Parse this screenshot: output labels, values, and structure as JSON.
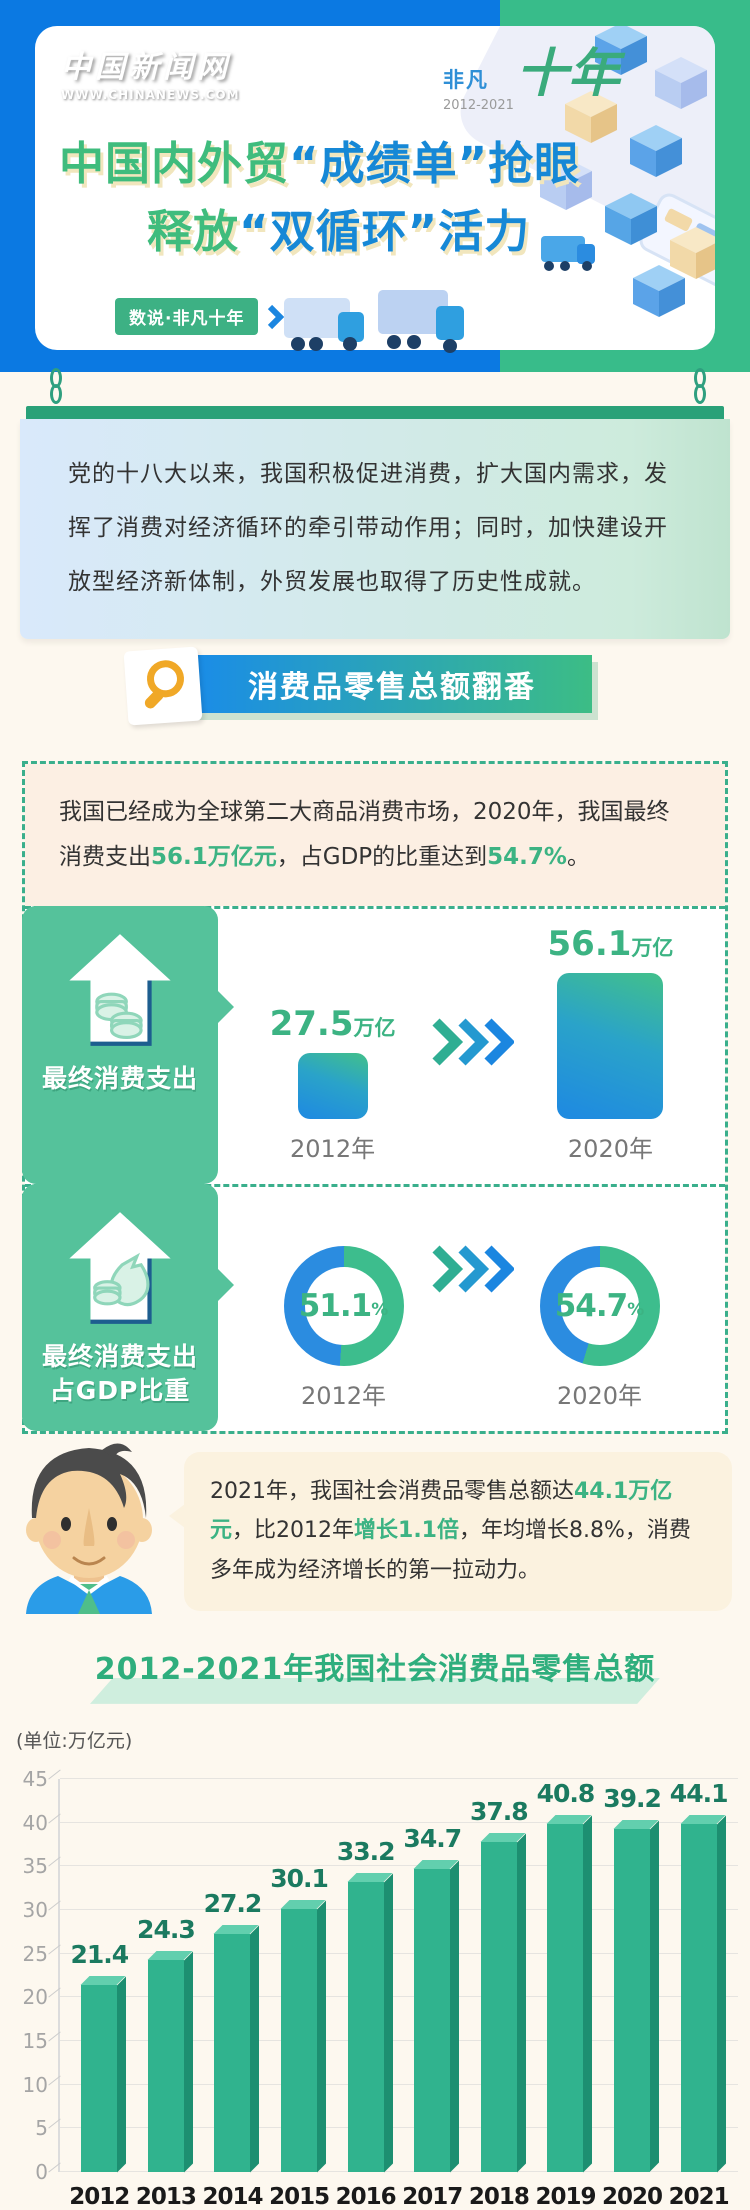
{
  "theme": {
    "header_blue": "#0b79e2",
    "header_green": "#38bc8a",
    "accent_green": "#3cb383",
    "accent_blue": "#1688d6",
    "dashed_border": "#3aaf8c"
  },
  "header": {
    "logo_title": "中国新闻网",
    "logo_url": "WWW.CHINANEWS.COM",
    "decade_label_1": "非凡",
    "decade_label_2": "十年",
    "decade_years": "2012-2021",
    "title_line1_green": "中国内外贸",
    "title_line1_blue": "“成绩单”抢眼",
    "title_line2_green": "释放",
    "title_line2_blue": "“双循环”活力",
    "series_badge": "数说·非凡十年"
  },
  "intro_board": {
    "text": "党的十八大以来，我国积极促进消费，扩大国内需求，发挥了消费对经济循环的牵引带动作用；同时，加快建设开放型经济新体制，外贸发展也取得了历史性成就。"
  },
  "section_consumption": {
    "banner_title": "消费品零售总额翻番",
    "lead_p1": "我国已经成为全球第二大商品消费市场，2020年，我国最终消费支出",
    "lead_h1": "56.1万亿元",
    "lead_p2": "，占GDP的比重达到",
    "lead_h2": "54.7%",
    "lead_p3": "。",
    "stat_spending": {
      "label": "最终消费支出",
      "from_value": "27.5",
      "from_unit": "万亿",
      "from_year": "2012年",
      "to_value": "56.1",
      "to_unit": "万亿",
      "to_year": "2020年"
    },
    "stat_gdp": {
      "label_line1": "最终消费支出",
      "label_line2": "占GDP比重"
    }
  },
  "expert_quote": {
    "p1": "2021年，我国社会消费品零售总额达",
    "h1": "44.1万亿元",
    "p2": "，比2012年",
    "h2": "增长1.1倍",
    "p3": "，年均增长8.8%，消费多年成为经济增长的第一拉动力。"
  },
  "chart_data": [
    {
      "type": "donut",
      "title": "最终消费支出占GDP比重",
      "year": "2012年",
      "value_pct": 51.1,
      "value_text": "51.1",
      "pct_sign": "%",
      "colors": {
        "filled": "#3dbd8d",
        "rest": "#2b8ce0"
      }
    },
    {
      "type": "donut",
      "title": "最终消费支出占GDP比重",
      "year": "2020年",
      "value_pct": 54.7,
      "value_text": "54.7",
      "pct_sign": "%",
      "colors": {
        "filled": "#3dbd8d",
        "rest": "#2b8ce0"
      }
    },
    {
      "type": "bar",
      "title": "2012-2021年我国社会消费品零售总额",
      "unit_label": "(单位:万亿元)",
      "categories": [
        "2012",
        "2013",
        "2014",
        "2015",
        "2016",
        "2017",
        "2018",
        "2019",
        "2020",
        "2021"
      ],
      "values": [
        21.4,
        24.3,
        27.2,
        30.1,
        33.2,
        34.7,
        37.8,
        40.8,
        39.2,
        44.1
      ],
      "ylim": [
        0,
        45
      ],
      "yticks": [
        0,
        5,
        10,
        15,
        20,
        25,
        30,
        35,
        40,
        45
      ],
      "grid": true,
      "legend": "none",
      "bar_color": "#30b38e"
    }
  ]
}
